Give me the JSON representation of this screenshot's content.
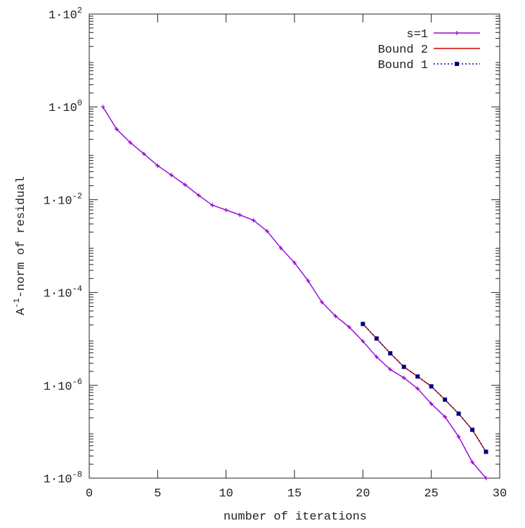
{
  "chart_data": {
    "type": "line",
    "x_label": "number of iterations",
    "y_label": {
      "base": "A",
      "sup": "-1",
      "rest": "-norm of residual"
    },
    "log_y": true,
    "xlim": [
      0,
      30
    ],
    "xticks": [
      0,
      5,
      10,
      15,
      20,
      25,
      30
    ],
    "ylim": [
      1e-08,
      100
    ],
    "yticks": [
      {
        "value": 1e-08,
        "label": "1·10",
        "sup": "-8"
      },
      {
        "value": 1e-06,
        "label": "1·10",
        "sup": "-6"
      },
      {
        "value": 0.0001,
        "label": "1·10",
        "sup": "-4"
      },
      {
        "value": 0.01,
        "label": "1·10",
        "sup": "-2"
      },
      {
        "value": 1,
        "label": "1·10",
        "sup": "0"
      },
      {
        "value": 100,
        "label": "1·10",
        "sup": "2"
      }
    ],
    "legend": "top-right",
    "series": [
      {
        "name": "s=1",
        "color": "#9400d3",
        "dash": "solid",
        "marker": "plus",
        "x": [
          1,
          2,
          3,
          4,
          5,
          6,
          7,
          8,
          9,
          10,
          11,
          12,
          13,
          14,
          15,
          16,
          17,
          18,
          19,
          20,
          21,
          22,
          23,
          24,
          25,
          26,
          27,
          28,
          29
        ],
        "values": [
          1.0,
          0.33,
          0.17,
          0.097,
          0.054,
          0.034,
          0.021,
          0.0124,
          0.0076,
          0.006,
          0.0047,
          0.0036,
          0.0021,
          0.00091,
          0.00044,
          0.000178,
          6.2e-05,
          3.1e-05,
          1.8e-05,
          8.9e-06,
          4.1e-06,
          2.2e-06,
          1.45e-06,
          8.5e-07,
          4e-07,
          2.1e-07,
          7.8e-08,
          2.2e-08,
          1e-08
        ]
      },
      {
        "name": "Bound 2",
        "color": "#d40000",
        "dash": "solid",
        "marker": "none",
        "x": [
          20,
          21,
          22,
          23,
          24,
          25,
          26,
          27,
          28,
          29
        ],
        "values": [
          2.1e-05,
          1.02e-05,
          4.9e-06,
          2.5e-06,
          1.55e-06,
          9.5e-07,
          4.9e-07,
          2.45e-07,
          1.1e-07,
          3.7e-08
        ]
      },
      {
        "name": "Bound 1",
        "color": "#000080",
        "dash": "dotted",
        "marker": "square",
        "x": [
          20,
          21,
          22,
          23,
          24,
          25,
          26,
          27,
          28,
          29
        ],
        "values": [
          2.1e-05,
          1.02e-05,
          4.9e-06,
          2.5e-06,
          1.55e-06,
          9.5e-07,
          4.9e-07,
          2.45e-07,
          1.1e-07,
          3.7e-08
        ]
      }
    ]
  }
}
